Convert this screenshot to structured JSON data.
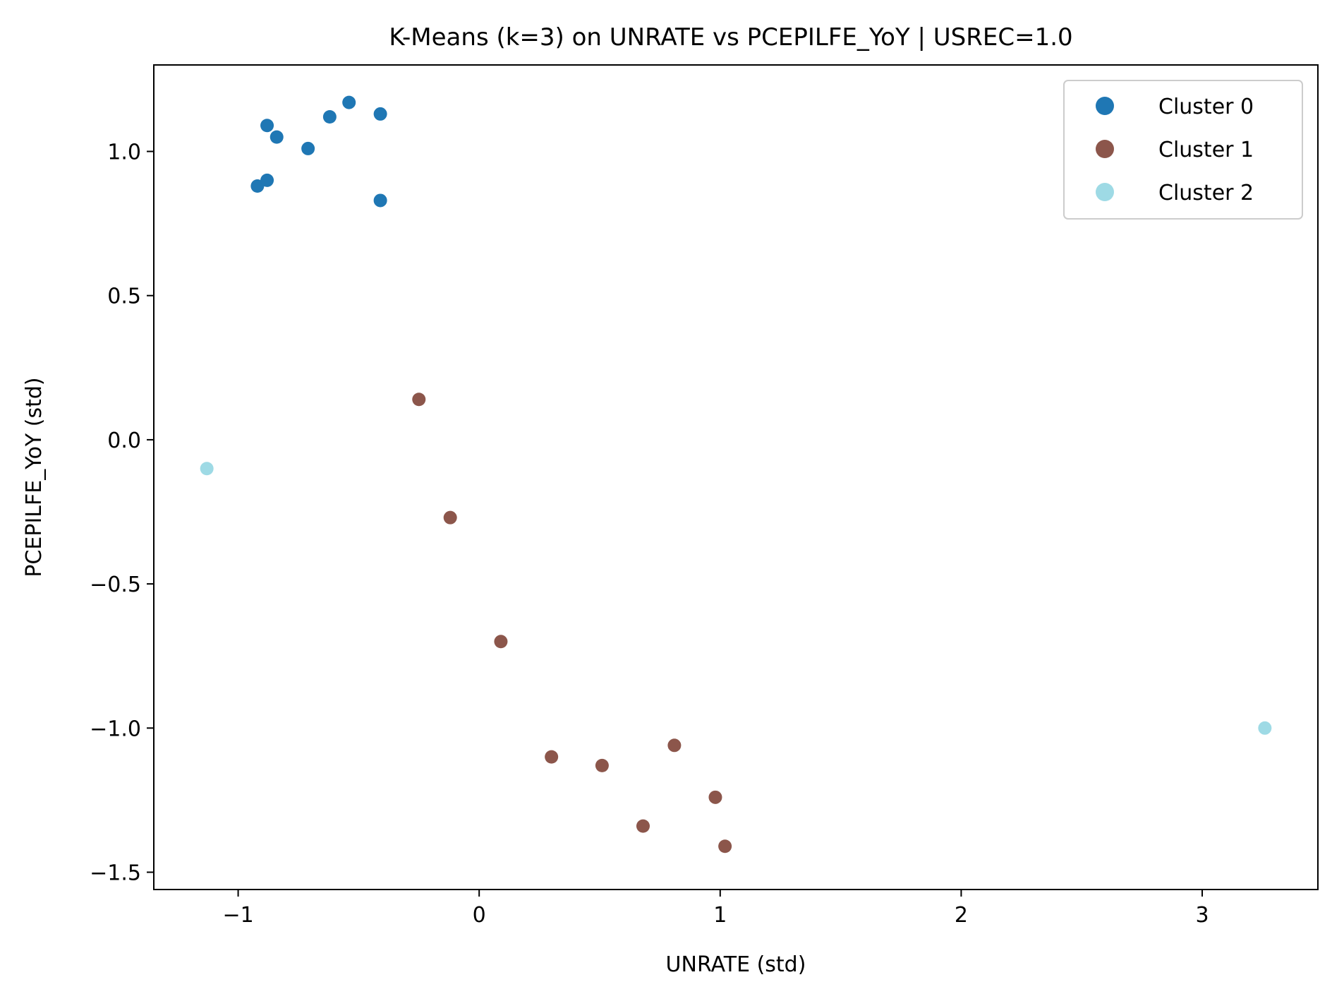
{
  "chart_data": {
    "type": "scatter",
    "title": "K-Means (k=3) on UNRATE vs PCEPILFE_YoY | USREC=1.0",
    "xlabel": "UNRATE (std)",
    "ylabel": "PCEPILFE_YoY (std)",
    "xlim": [
      -1.35,
      3.48
    ],
    "ylim": [
      -1.56,
      1.3
    ],
    "xticks": [
      -1,
      0,
      1,
      2,
      3
    ],
    "xtick_labels": [
      "−1",
      "0",
      "1",
      "2",
      "3"
    ],
    "yticks": [
      1.0,
      0.5,
      0.0,
      -0.5,
      -1.0,
      -1.5
    ],
    "ytick_labels": [
      "1.0",
      "0.5",
      "0.0",
      "−0.5",
      "−1.0",
      "−1.5"
    ],
    "grid": false,
    "legend_position": "top-right",
    "series": [
      {
        "name": "Cluster 0",
        "color": "#1f77b4",
        "points": [
          [
            -0.88,
            1.09
          ],
          [
            -0.84,
            1.05
          ],
          [
            -0.62,
            1.12
          ],
          [
            -0.54,
            1.17
          ],
          [
            -0.41,
            1.13
          ],
          [
            -0.71,
            1.01
          ],
          [
            -0.92,
            0.88
          ],
          [
            -0.88,
            0.9
          ],
          [
            -0.41,
            0.83
          ]
        ]
      },
      {
        "name": "Cluster 1",
        "color": "#8c564b",
        "points": [
          [
            -0.25,
            0.14
          ],
          [
            -0.12,
            -0.27
          ],
          [
            0.09,
            -0.7
          ],
          [
            0.3,
            -1.1
          ],
          [
            0.51,
            -1.13
          ],
          [
            0.81,
            -1.06
          ],
          [
            0.98,
            -1.24
          ],
          [
            0.68,
            -1.34
          ],
          [
            1.02,
            -1.41
          ]
        ]
      },
      {
        "name": "Cluster 2",
        "color": "#9edae5",
        "points": [
          [
            -1.13,
            -0.1
          ],
          [
            3.26,
            -1.0
          ]
        ]
      }
    ]
  }
}
